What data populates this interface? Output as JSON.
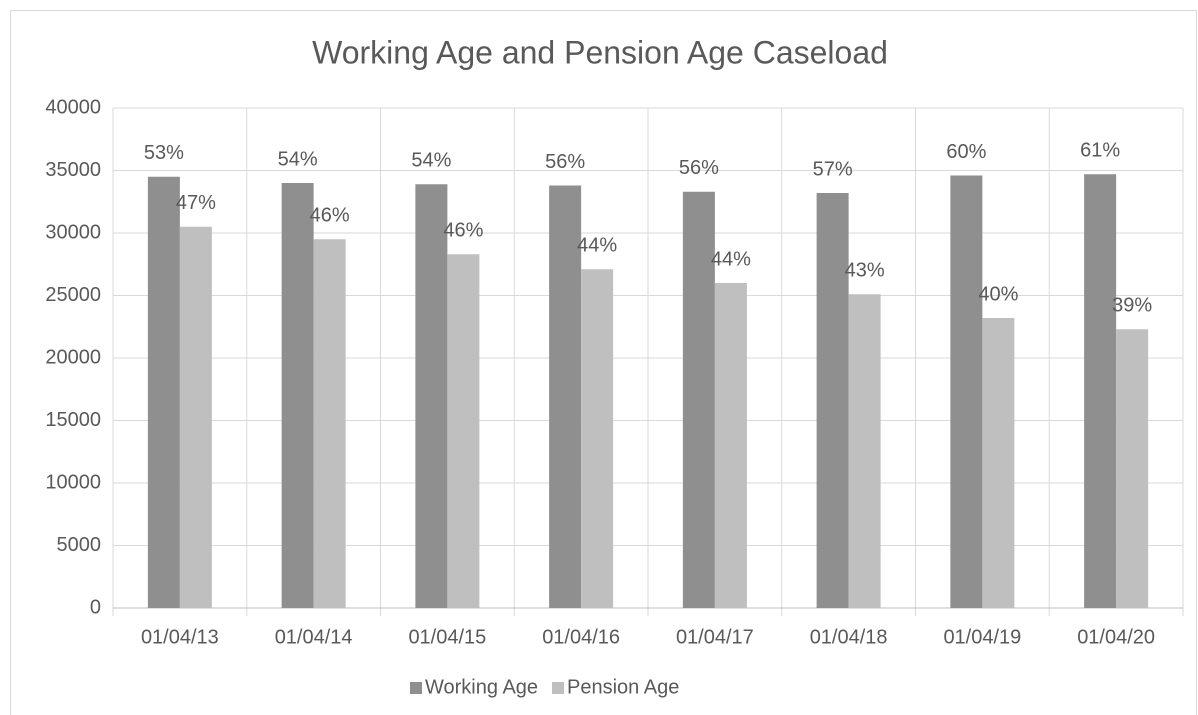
{
  "chart_data": {
    "type": "bar",
    "title": "Working Age and Pension Age Caseload",
    "categories": [
      "01/04/13",
      "01/04/14",
      "01/04/15",
      "01/04/16",
      "01/04/17",
      "01/04/18",
      "01/04/19",
      "01/04/20"
    ],
    "series": [
      {
        "name": "Working Age",
        "color": "#8f8f8f",
        "values": [
          34500,
          34000,
          33900,
          33800,
          33300,
          33200,
          34600,
          34700
        ],
        "data_labels": [
          {
            "value": 53,
            "label": "53%"
          },
          {
            "value": 54,
            "label": "54%"
          },
          {
            "value": 54,
            "label": "54%"
          },
          {
            "value": 56,
            "label": "56%"
          },
          {
            "value": 56,
            "label": "56%"
          },
          {
            "value": 57,
            "label": "57%"
          },
          {
            "value": 60,
            "label": "60%"
          },
          {
            "value": 61,
            "label": "61%"
          }
        ]
      },
      {
        "name": "Pension Age",
        "color": "#bfbfbf",
        "values": [
          30500,
          29500,
          28300,
          27100,
          26000,
          25100,
          23200,
          22300
        ],
        "data_labels": [
          {
            "value": 47,
            "label": "47%"
          },
          {
            "value": 46,
            "label": "46%"
          },
          {
            "value": 46,
            "label": "46%"
          },
          {
            "value": 44,
            "label": "44%"
          },
          {
            "value": 44,
            "label": "44%"
          },
          {
            "value": 43,
            "label": "43%"
          },
          {
            "value": 40,
            "label": "40%"
          },
          {
            "value": 39,
            "label": "39%"
          }
        ]
      }
    ],
    "ylim": [
      0,
      40000
    ],
    "yticks": [
      0,
      5000,
      10000,
      15000,
      20000,
      25000,
      30000,
      35000,
      40000
    ],
    "grid": true,
    "legend": "bottom"
  }
}
